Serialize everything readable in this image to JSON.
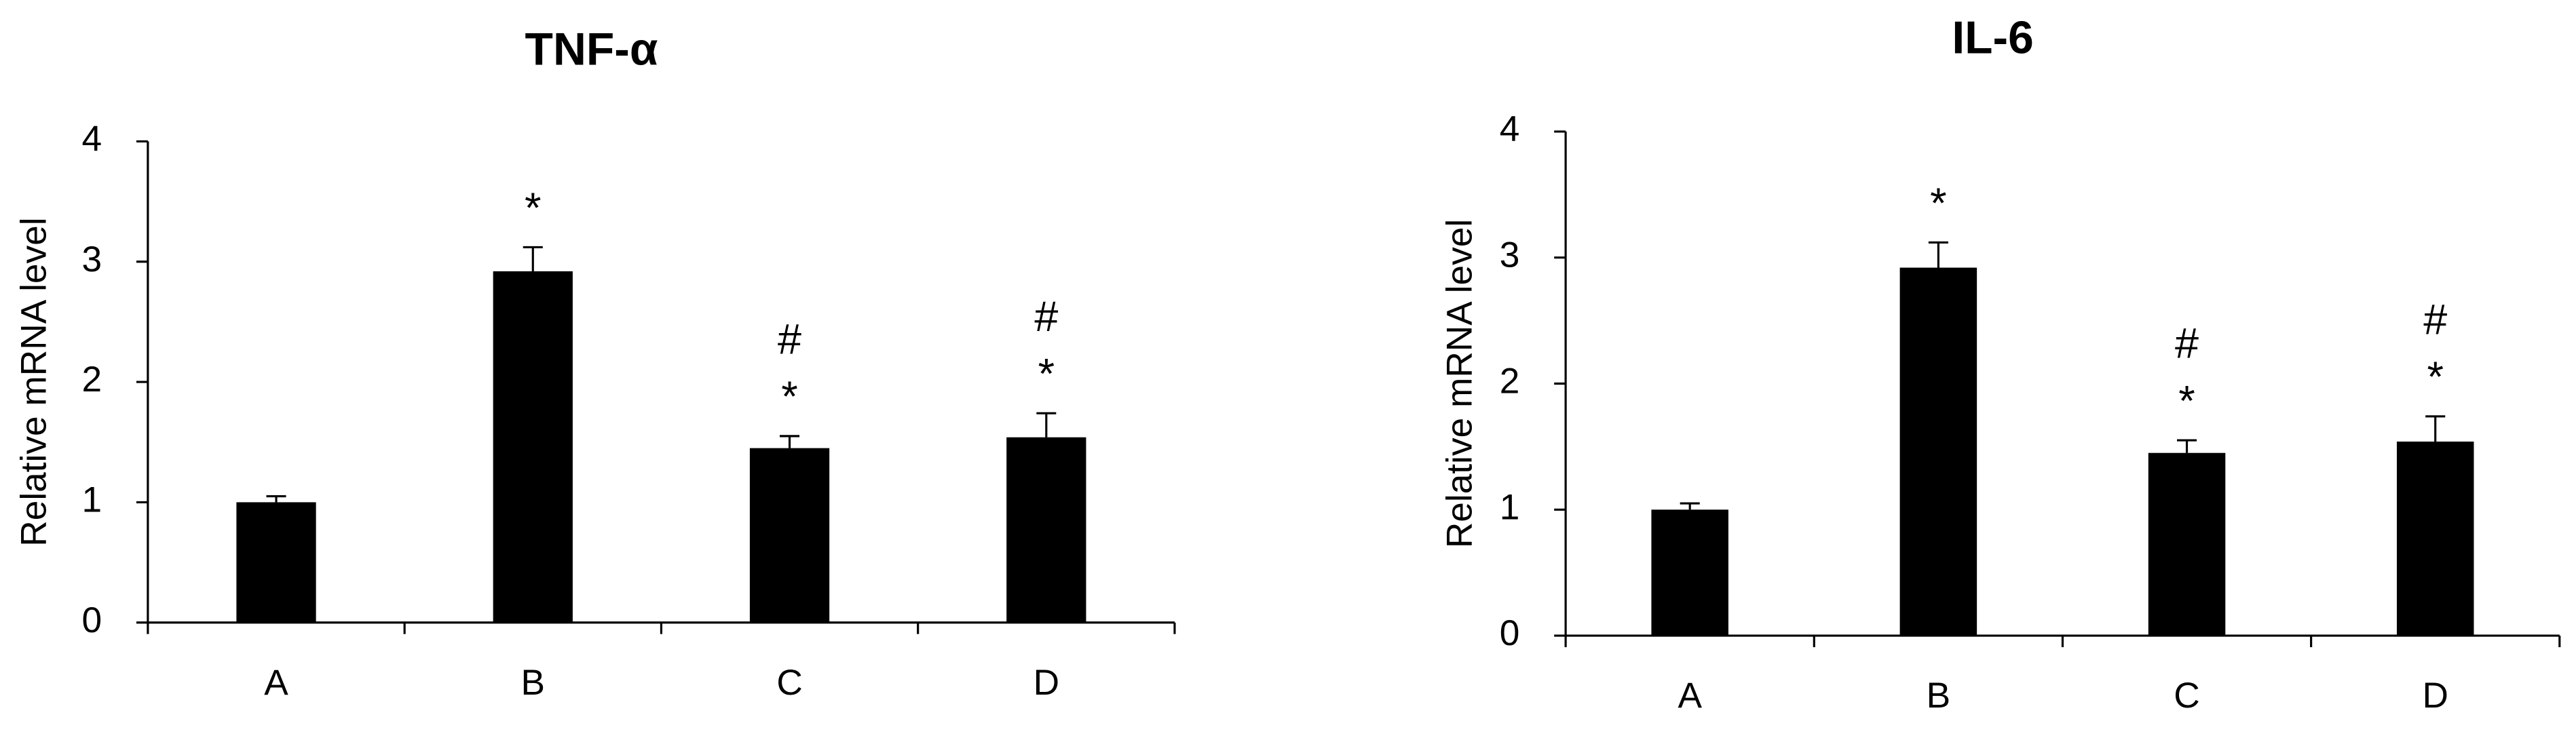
{
  "chart_data": [
    {
      "type": "bar",
      "title": "TNF-α",
      "ylabel": "Relative mRNA level",
      "categories": [
        "A",
        "B",
        "C",
        "D"
      ],
      "values": [
        1.0,
        2.92,
        1.45,
        1.54
      ],
      "errors": [
        0.05,
        0.2,
        0.1,
        0.2
      ],
      "annotations": [
        [],
        [
          "*"
        ],
        [
          "#",
          "*"
        ],
        [
          "#",
          "*"
        ]
      ],
      "color": "#000000",
      "ylim": [
        0,
        4
      ],
      "yticks": [
        0,
        1,
        2,
        3,
        4
      ],
      "grid": false
    },
    {
      "type": "bar",
      "title": "IL-6",
      "ylabel": "Relative mRNA level",
      "categories": [
        "A",
        "B",
        "C",
        "D"
      ],
      "values": [
        1.0,
        2.92,
        1.45,
        1.54
      ],
      "errors": [
        0.05,
        0.2,
        0.1,
        0.2
      ],
      "annotations": [
        [],
        [
          "*"
        ],
        [
          "#",
          "*"
        ],
        [
          "#",
          "*"
        ]
      ],
      "color": "#000000",
      "ylim": [
        0,
        4
      ],
      "yticks": [
        0,
        1,
        2,
        3,
        4
      ],
      "grid": false
    }
  ]
}
